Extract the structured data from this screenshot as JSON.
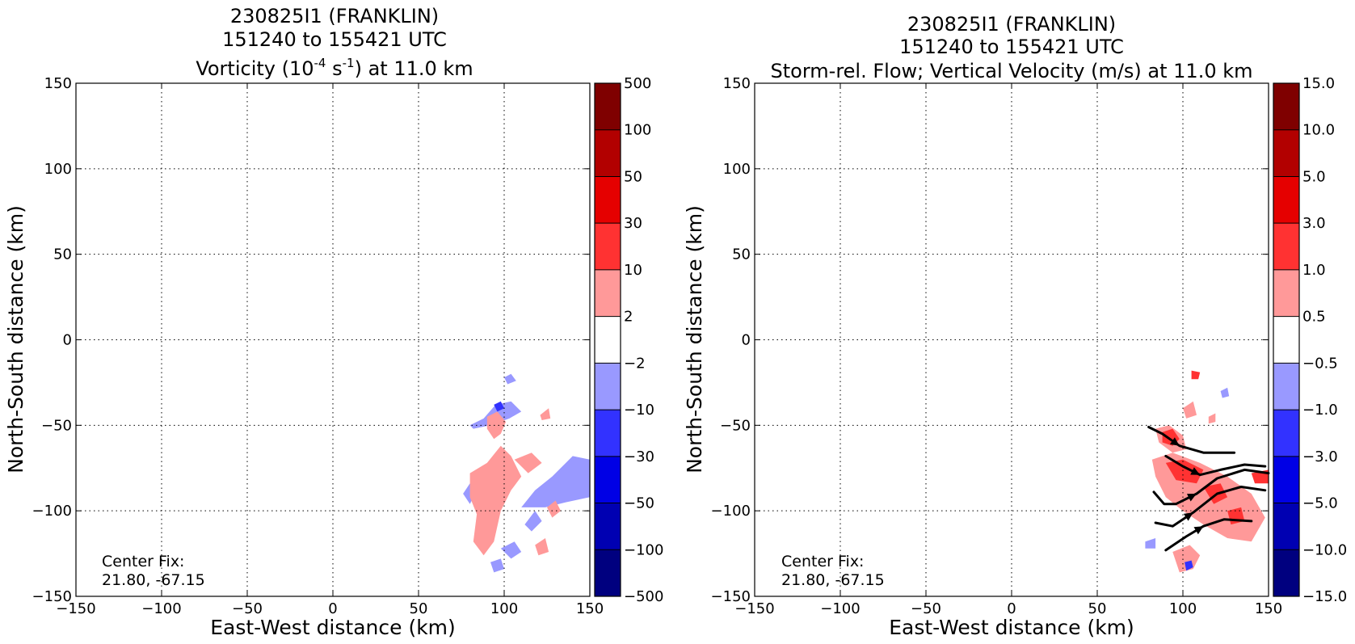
{
  "panels": [
    {
      "title_lines": [
        "230825I1 (FRANKLIN)",
        "151240 to 155421 UTC"
      ],
      "title_line3": {
        "prefix": "Vorticity (10",
        "sup1": "-4",
        "mid": " s",
        "sup2": "-1",
        "suffix": ") at 11.0 km"
      },
      "xlabel": "East-West distance (km)",
      "ylabel": "North-South distance (km)",
      "center_fix_label": "Center Fix:",
      "center_fix_value": "21.80, -67.15",
      "colorbar_ticks": [
        "500",
        "100",
        "50",
        "30",
        "10",
        "2",
        "−2",
        "−10",
        "−30",
        "−50",
        "−100",
        "−500"
      ]
    },
    {
      "title_lines": [
        "230825I1 (FRANKLIN)",
        "151240 to 155421 UTC",
        "Storm-rel. Flow; Vertical Velocity (m/s) at 11.0 km"
      ],
      "xlabel": "East-West distance (km)",
      "ylabel": "North-South distance (km)",
      "center_fix_label": "Center Fix:",
      "center_fix_value": "21.80, -67.15",
      "colorbar_ticks": [
        "15.0",
        "10.0",
        "5.0",
        "3.0",
        "1.0",
        "0.5",
        "−0.5",
        "−1.0",
        "−3.0",
        "−5.0",
        "−10.0",
        "−15.0"
      ]
    }
  ],
  "chart_data": [
    {
      "type": "heatmap",
      "field": "vorticity",
      "x_ticks": [
        "−150",
        "−100",
        "−50",
        "0",
        "50",
        "100",
        "150"
      ],
      "y_ticks": [
        "150",
        "100",
        "50",
        "0",
        "−50",
        "−100",
        "−150"
      ],
      "xlim": [
        -150,
        150
      ],
      "ylim": [
        -150,
        150
      ],
      "grid": true,
      "colorbar_levels": [
        -500,
        -100,
        -50,
        -30,
        -10,
        -2,
        2,
        10,
        30,
        50,
        100,
        500
      ],
      "colorbar_colors": [
        "#00007f",
        "#0000b2",
        "#0000e5",
        "#3232ff",
        "#9999ff",
        "#ffffff",
        "#ff9999",
        "#ff3232",
        "#e50000",
        "#b20000",
        "#7f0000"
      ],
      "regions": [
        {
          "sign": "negative",
          "color": "#9999ff",
          "points": [
            [
              80,
              -50
            ],
            [
              88,
              -46
            ],
            [
              95,
              -38
            ],
            [
              104,
              -36
            ],
            [
              110,
              -42
            ],
            [
              103,
              -46
            ],
            [
              92,
              -50
            ],
            [
              82,
              -52
            ]
          ]
        },
        {
          "sign": "negative",
          "color": "#9999ff",
          "points": [
            [
              100,
              -22
            ],
            [
              104,
              -20
            ],
            [
              107,
              -24
            ],
            [
              102,
              -26
            ]
          ]
        },
        {
          "sign": "negative",
          "color": "#9999ff",
          "points": [
            [
              110,
              -98
            ],
            [
              118,
              -88
            ],
            [
              128,
              -80
            ],
            [
              140,
              -68
            ],
            [
              150,
              -70
            ],
            [
              150,
              -92
            ],
            [
              136,
              -95
            ],
            [
              124,
              -98
            ]
          ]
        },
        {
          "sign": "negative",
          "color": "#9999ff",
          "points": [
            [
              76,
              -90
            ],
            [
              80,
              -84
            ],
            [
              84,
              -88
            ],
            [
              80,
              -96
            ]
          ]
        },
        {
          "sign": "negative",
          "color": "#9999ff",
          "points": [
            [
              98,
              -122
            ],
            [
              106,
              -118
            ],
            [
              110,
              -124
            ],
            [
              104,
              -128
            ]
          ]
        },
        {
          "sign": "negative",
          "color": "#9999ff",
          "points": [
            [
              112,
              -108
            ],
            [
              118,
              -100
            ],
            [
              122,
              -106
            ],
            [
              116,
              -112
            ]
          ]
        },
        {
          "sign": "negative",
          "color": "#9999ff",
          "points": [
            [
              92,
              -130
            ],
            [
              98,
              -128
            ],
            [
              100,
              -134
            ],
            [
              94,
              -136
            ]
          ]
        },
        {
          "sign": "negative",
          "color": "#3232ff",
          "points": [
            [
              94,
              -38
            ],
            [
              98,
              -36
            ],
            [
              100,
              -40
            ],
            [
              96,
              -42
            ]
          ]
        },
        {
          "sign": "positive",
          "color": "#ff9999",
          "points": [
            [
              90,
              -45
            ],
            [
              96,
              -42
            ],
            [
              101,
              -48
            ],
            [
              98,
              -55
            ],
            [
              94,
              -58
            ],
            [
              90,
              -52
            ]
          ]
        },
        {
          "sign": "positive",
          "color": "#ff9999",
          "points": [
            [
              121,
              -44
            ],
            [
              126,
              -40
            ],
            [
              127,
              -46
            ],
            [
              122,
              -47
            ]
          ]
        },
        {
          "sign": "positive",
          "color": "#ff9999",
          "points": [
            [
              80,
              -78
            ],
            [
              90,
              -72
            ],
            [
              98,
              -62
            ],
            [
              104,
              -68
            ],
            [
              110,
              -80
            ],
            [
              104,
              -88
            ],
            [
              98,
              -100
            ],
            [
              94,
              -118
            ],
            [
              88,
              -126
            ],
            [
              82,
              -118
            ],
            [
              84,
              -102
            ],
            [
              80,
              -92
            ]
          ]
        },
        {
          "sign": "positive",
          "color": "#ff9999",
          "points": [
            [
              106,
              -70
            ],
            [
              116,
              -66
            ],
            [
              122,
              -72
            ],
            [
              114,
              -78
            ]
          ]
        },
        {
          "sign": "positive",
          "color": "#ff9999",
          "points": [
            [
              125,
              -98
            ],
            [
              130,
              -94
            ],
            [
              133,
              -100
            ],
            [
              128,
              -104
            ]
          ]
        },
        {
          "sign": "positive",
          "color": "#ff9999",
          "points": [
            [
              118,
              -120
            ],
            [
              124,
              -116
            ],
            [
              126,
              -124
            ],
            [
              120,
              -126
            ]
          ]
        }
      ]
    },
    {
      "type": "heatmap",
      "field": "vertical velocity with storm-relative flow streamlines",
      "x_ticks": [
        "−150",
        "−100",
        "−50",
        "0",
        "50",
        "100",
        "150"
      ],
      "y_ticks": [
        "150",
        "100",
        "50",
        "0",
        "−50",
        "−100",
        "−150"
      ],
      "xlim": [
        -150,
        150
      ],
      "ylim": [
        -150,
        150
      ],
      "grid": true,
      "colorbar_levels": [
        -15.0,
        -10.0,
        -5.0,
        -3.0,
        -1.0,
        -0.5,
        0.5,
        1.0,
        3.0,
        5.0,
        10.0,
        15.0
      ],
      "colorbar_colors": [
        "#00007f",
        "#0000b2",
        "#0000e5",
        "#3232ff",
        "#9999ff",
        "#ffffff",
        "#ff9999",
        "#ff3232",
        "#e50000",
        "#b20000",
        "#7f0000"
      ],
      "regions": [
        {
          "sign": "positive",
          "color": "#ff9999",
          "points": [
            [
              84,
              -52
            ],
            [
              92,
              -50
            ],
            [
              100,
              -56
            ],
            [
              102,
              -64
            ],
            [
              94,
              -66
            ],
            [
              86,
              -60
            ]
          ]
        },
        {
          "sign": "positive",
          "color": "#ff3232",
          "points": [
            [
              88,
              -54
            ],
            [
              94,
              -52
            ],
            [
              98,
              -58
            ],
            [
              94,
              -62
            ],
            [
              88,
              -60
            ]
          ]
        },
        {
          "sign": "positive",
          "color": "#ff9999",
          "points": [
            [
              82,
              -70
            ],
            [
              94,
              -66
            ],
            [
              110,
              -72
            ],
            [
              126,
              -80
            ],
            [
              140,
              -90
            ],
            [
              148,
              -104
            ],
            [
              140,
              -118
            ],
            [
              126,
              -116
            ],
            [
              112,
              -108
            ],
            [
              100,
              -100
            ],
            [
              90,
              -92
            ],
            [
              84,
              -80
            ]
          ]
        },
        {
          "sign": "positive",
          "color": "#ff3232",
          "points": [
            [
              90,
              -72
            ],
            [
              100,
              -70
            ],
            [
              112,
              -76
            ],
            [
              108,
              -84
            ],
            [
              96,
              -82
            ]
          ]
        },
        {
          "sign": "positive",
          "color": "#ff3232",
          "points": [
            [
              112,
              -86
            ],
            [
              122,
              -84
            ],
            [
              126,
              -92
            ],
            [
              118,
              -96
            ]
          ]
        },
        {
          "sign": "positive",
          "color": "#ff3232",
          "points": [
            [
              126,
              -100
            ],
            [
              134,
              -98
            ],
            [
              136,
              -106
            ],
            [
              128,
              -108
            ]
          ]
        },
        {
          "sign": "positive",
          "color": "#ff3232",
          "points": [
            [
              140,
              -78
            ],
            [
              150,
              -76
            ],
            [
              150,
              -84
            ],
            [
              142,
              -84
            ]
          ]
        },
        {
          "sign": "positive",
          "color": "#ff9999",
          "points": [
            [
              100,
              -40
            ],
            [
              106,
              -36
            ],
            [
              108,
              -44
            ],
            [
              102,
              -46
            ]
          ]
        },
        {
          "sign": "positive",
          "color": "#ff3232",
          "points": [
            [
              105,
              -18
            ],
            [
              110,
              -19
            ],
            [
              109,
              -23
            ],
            [
              105,
              -23
            ]
          ]
        },
        {
          "sign": "positive",
          "color": "#ff9999",
          "points": [
            [
              94,
              -124
            ],
            [
              104,
              -120
            ],
            [
              110,
              -126
            ],
            [
              106,
              -134
            ],
            [
              98,
              -136
            ]
          ]
        },
        {
          "sign": "positive",
          "color": "#ff9999",
          "points": [
            [
              115,
              -45
            ],
            [
              119,
              -43
            ],
            [
              119,
              -48
            ],
            [
              115,
              -49
            ]
          ]
        },
        {
          "sign": "negative",
          "color": "#9999ff",
          "points": [
            [
              78,
              -118
            ],
            [
              84,
              -116
            ],
            [
              84,
              -122
            ],
            [
              78,
              -122
            ]
          ]
        },
        {
          "sign": "negative",
          "color": "#9999ff",
          "points": [
            [
              122,
              -30
            ],
            [
              126,
              -28
            ],
            [
              127,
              -33
            ],
            [
              123,
              -34
            ]
          ]
        },
        {
          "sign": "negative",
          "color": "#3232ff",
          "points": [
            [
              101,
              -130
            ],
            [
              105,
              -129
            ],
            [
              106,
              -133
            ],
            [
              102,
              -135
            ]
          ]
        }
      ],
      "streamlines": [
        {
          "points": [
            [
              80,
              -51
            ],
            [
              88,
              -55
            ],
            [
              98,
              -62
            ],
            [
              112,
              -66
            ],
            [
              130,
              -66
            ]
          ],
          "arrow_at": [
            98,
            -62
          ]
        },
        {
          "points": [
            [
              90,
              -68
            ],
            [
              100,
              -74
            ],
            [
              110,
              -79
            ],
            [
              122,
              -76
            ],
            [
              136,
              -73
            ],
            [
              148,
              -74
            ]
          ],
          "arrow_at": [
            110,
            -79
          ]
        },
        {
          "points": [
            [
              83,
              -89
            ],
            [
              89,
              -96
            ],
            [
              96,
              -96
            ],
            [
              108,
              -90
            ],
            [
              120,
              -81
            ],
            [
              136,
              -76
            ],
            [
              150,
              -78
            ]
          ],
          "arrow_at": [
            108,
            -90
          ]
        },
        {
          "points": [
            [
              84,
              -107
            ],
            [
              94,
              -109
            ],
            [
              106,
              -101
            ],
            [
              120,
              -90
            ],
            [
              134,
              -86
            ],
            [
              148,
              -88
            ]
          ],
          "arrow_at": [
            106,
            -101
          ]
        },
        {
          "points": [
            [
              90,
              -123
            ],
            [
              102,
              -115
            ],
            [
              112,
              -109
            ],
            [
              124,
              -105
            ],
            [
              140,
              -106
            ]
          ],
          "arrow_at": [
            112,
            -109
          ]
        }
      ]
    }
  ]
}
